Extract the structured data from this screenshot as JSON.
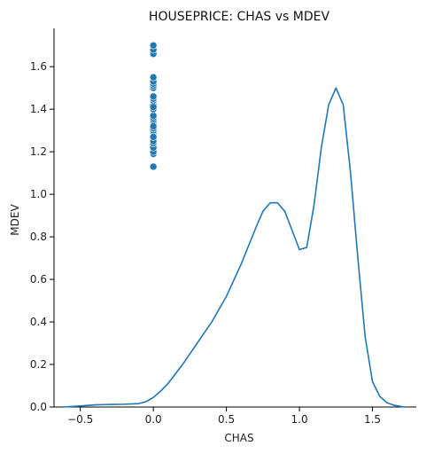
{
  "chart_data": {
    "type": "scatter",
    "title": "HOUSEPRICE: CHAS vs MDEV",
    "xlabel": "CHAS",
    "ylabel": "MDEV",
    "xlim": [
      -0.68,
      1.8
    ],
    "ylim": [
      0,
      1.78
    ],
    "x_ticks": [
      -0.5,
      0.0,
      0.5,
      1.0,
      1.5
    ],
    "x_tick_labels": [
      "−0.5",
      "0.0",
      "0.5",
      "1.0",
      "1.5"
    ],
    "y_ticks": [
      0.0,
      0.2,
      0.4,
      0.6,
      0.8,
      1.0,
      1.2,
      1.4,
      1.6
    ],
    "y_tick_labels": [
      "0.0",
      "0.2",
      "0.4",
      "0.6",
      "0.8",
      "1.0",
      "1.2",
      "1.4",
      "1.6"
    ],
    "grid": false,
    "colors": {
      "series": "#1f77b4",
      "axis": "#000000"
    },
    "scatter": {
      "x": [
        0,
        0,
        0,
        0,
        0,
        0,
        0,
        0,
        0,
        0,
        0,
        0,
        0,
        0,
        0,
        0,
        0,
        0,
        0,
        0,
        0,
        0,
        0,
        0,
        0,
        0,
        0,
        0,
        0,
        0
      ],
      "y": [
        1.13,
        1.19,
        1.2,
        1.22,
        1.24,
        1.25,
        1.29,
        1.3,
        1.31,
        1.33,
        1.34,
        1.35,
        1.36,
        1.37,
        1.4,
        1.42,
        1.44,
        1.45,
        1.46,
        1.5,
        1.51,
        1.52,
        1.53,
        1.55,
        1.66,
        1.68,
        1.7,
        1.41,
        1.32,
        1.27
      ]
    },
    "density_curve": {
      "x": [
        -0.62,
        -0.5,
        -0.4,
        -0.3,
        -0.2,
        -0.1,
        -0.05,
        0.0,
        0.05,
        0.1,
        0.2,
        0.3,
        0.4,
        0.5,
        0.6,
        0.7,
        0.75,
        0.8,
        0.85,
        0.9,
        0.95,
        1.0,
        1.05,
        1.1,
        1.15,
        1.2,
        1.25,
        1.3,
        1.35,
        1.4,
        1.45,
        1.5,
        1.55,
        1.6,
        1.65,
        1.7,
        1.73
      ],
      "y": [
        0.0,
        0.005,
        0.01,
        0.012,
        0.013,
        0.016,
        0.025,
        0.045,
        0.075,
        0.11,
        0.2,
        0.3,
        0.4,
        0.52,
        0.67,
        0.84,
        0.92,
        0.96,
        0.96,
        0.92,
        0.83,
        0.74,
        0.75,
        0.95,
        1.22,
        1.42,
        1.5,
        1.42,
        1.1,
        0.7,
        0.33,
        0.12,
        0.05,
        0.02,
        0.008,
        0.002,
        0.0
      ]
    }
  }
}
